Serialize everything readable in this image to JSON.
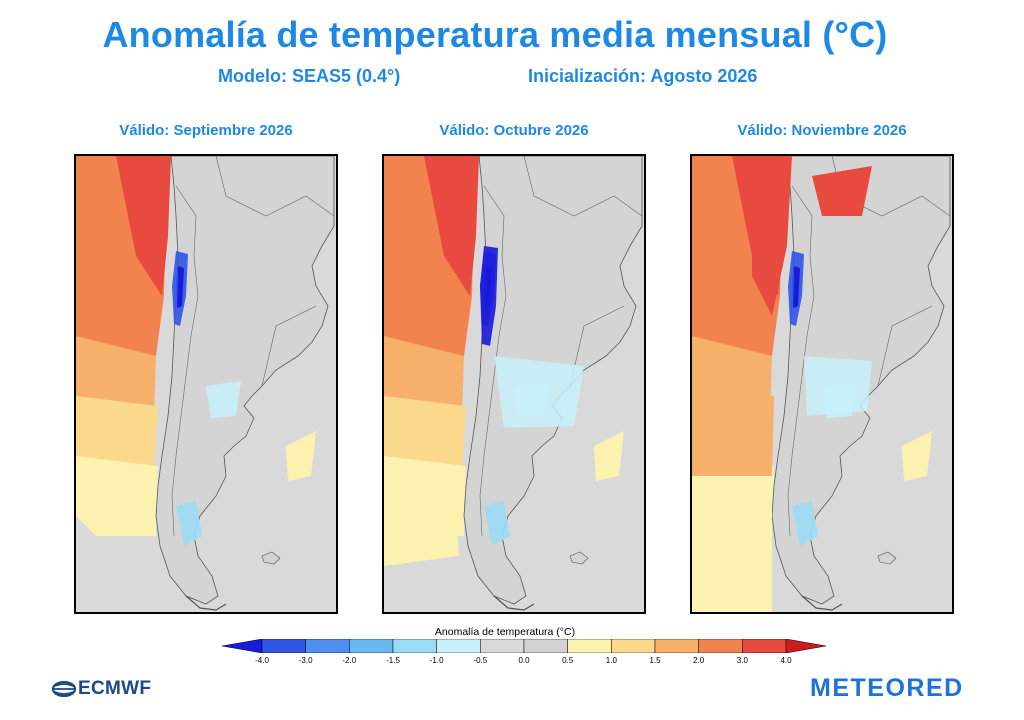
{
  "header": {
    "title": "Anomalía de temperatura media mensual (°C)",
    "model": "Modelo: SEAS5 (0.4°)",
    "init": "Inicialización: Agosto 2026"
  },
  "colors": {
    "title": "#1e88e5",
    "ecmwf": "#1a4a8a",
    "meteored": "#1e73d8",
    "map_neutral": "#d9d9d9",
    "map_border": "#555555"
  },
  "panels": [
    {
      "label": "Válido: Septiembre 2026",
      "map_description": "Anomaly map over Chile and Argentina"
    },
    {
      "label": "Válido: Octubre 2026",
      "map_description": "Anomaly map over Chile and Argentina"
    },
    {
      "label": "Válido: Noviembre 2026",
      "map_description": "Anomaly map over Chile and Argentina"
    }
  ],
  "colorbar": {
    "title": "Anomalía de temperatura (°C)",
    "ticks": [
      "-4.0",
      "-3.0",
      "-2.0",
      "-1.5",
      "-1.0",
      "-0.5",
      "0.0",
      "0.5",
      "1.0",
      "1.5",
      "2.0",
      "3.0",
      "4.0"
    ],
    "colors": [
      "#1a1adc",
      "#2f55e6",
      "#4f8ff0",
      "#6ab8f2",
      "#9adcf5",
      "#c8f0fa",
      "#dadada",
      "#d2d2d2",
      "#fbf2b0",
      "#fbd98c",
      "#f6b06a",
      "#f2834f",
      "#e84a40",
      "#cf1b1b"
    ]
  },
  "logos": {
    "left": "ECMWF",
    "right": "METEORED"
  }
}
